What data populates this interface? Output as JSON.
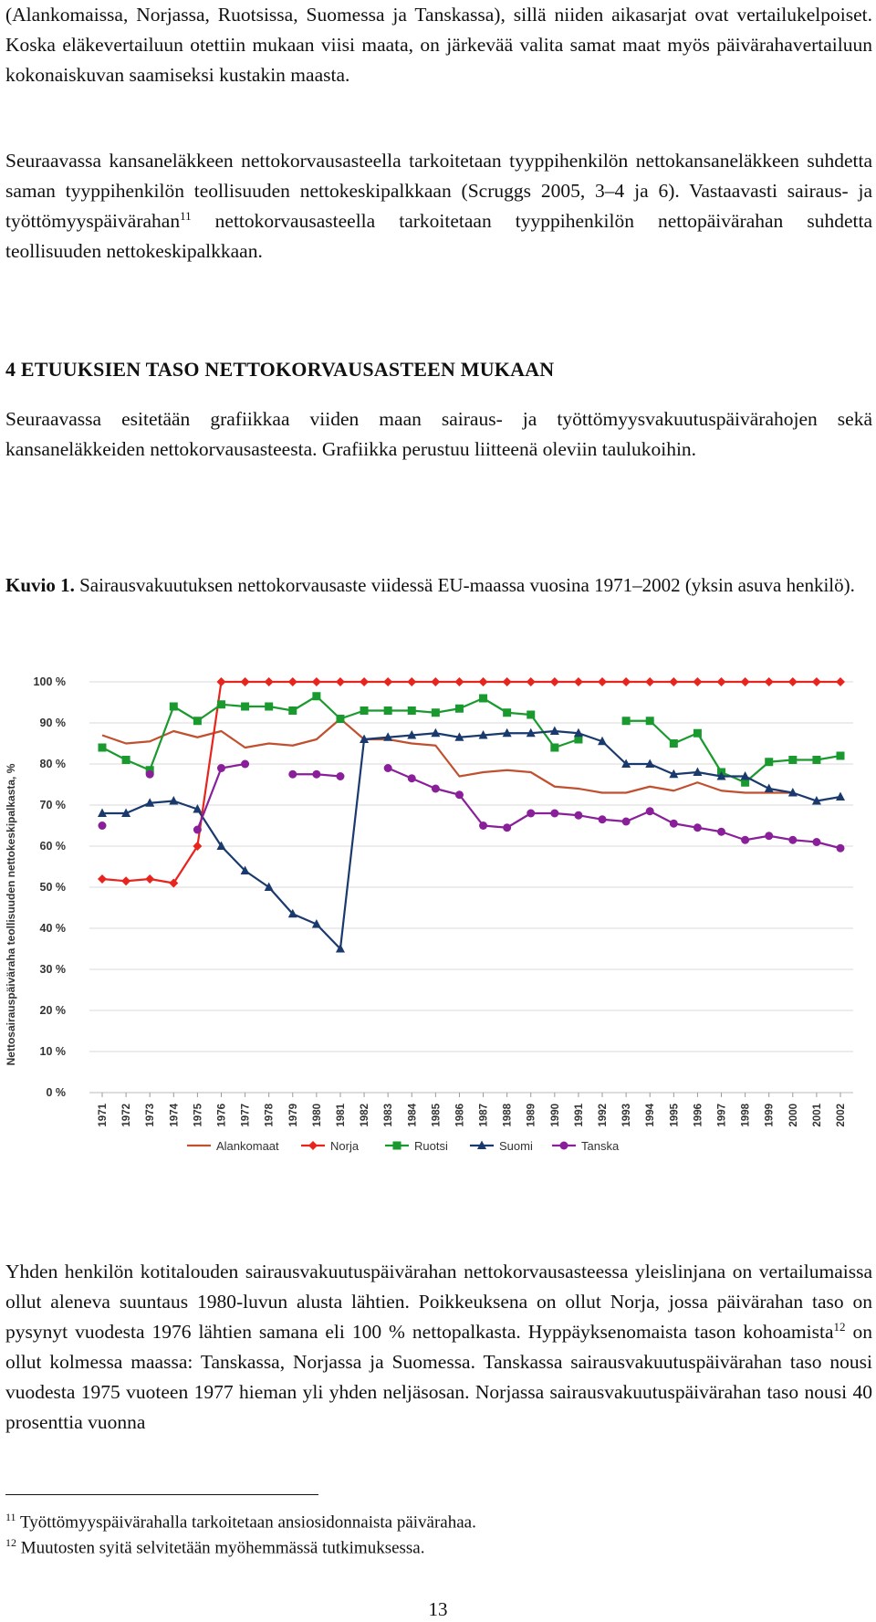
{
  "paragraphs": {
    "p1": "(Alankomaissa, Norjassa, Ruotsissa, Suomessa ja Tanskassa), sillä niiden aikasarjat ovat vertailukelpoiset. Koska eläkevertailuun otettiin mukaan viisi maata, on järkevää valita samat maat myös päivärahavertailuun kokonaiskuvan saamiseksi kustakin maasta.",
    "p2a": "Seuraavassa kansaneläkkeen nettokorvausasteella tarkoitetaan tyyppihenkilön nettokansaneläkkeen suhdetta saman tyyppihenkilön teollisuuden nettokeskipalkkaan (Scruggs 2005, 3–4 ja 6). Vastaavasti sairaus- ja työttömyyspäivärahan",
    "p2_sup": "11",
    "p2b": " nettokorvausasteella tarkoitetaan tyyppihenkilön nettopäivärahan suhdetta teollisuuden nettokeskipalkkaan.",
    "p3": "Seuraavassa esitetään grafiikkaa viiden maan sairaus- ja työttömyysvakuutuspäivärahojen sekä kansaneläkkeiden nettokorvausasteesta. Grafiikka perustuu liitteenä oleviin taulukoihin.",
    "p4a": "Yhden henkilön kotitalouden sairausvakuutuspäivärahan nettokorvausasteessa yleislinjana on vertailumaissa ollut aleneva suuntaus 1980-luvun alusta lähtien. Poikkeuksena on ollut Norja, jossa päivärahan taso on pysynyt vuodesta 1976 lähtien samana eli 100 % nettopalkasta. Hyppäyksenomaista tason kohoamista",
    "p4_sup": "12",
    "p4b": " on ollut kolmessa maassa: Tanskassa, Norjassa ja Suomessa. Tanskassa sairausvakuutuspäivärahan taso nousi vuodesta 1975 vuoteen 1977 hieman yli yhden neljäsosan. Norjassa sairausvakuutuspäivärahan taso nousi 40 prosenttia vuonna"
  },
  "heading": "4 ETUUKSIEN TASO NETTOKORVAUSASTEEN MUKAAN",
  "caption": {
    "label": "Kuvio 1.",
    "text": " Sairausvakuutuksen nettokorvausaste viidessä EU-maassa vuosina 1971–2002 (yksin asuva henkilö)."
  },
  "chart_data": {
    "type": "line",
    "ylabel": "Nettosairauspäiväraha teollisuuden nettokeskipalkasta, %",
    "ylim": [
      0,
      100
    ],
    "yticks": [
      "0 %",
      "10 %",
      "20 %",
      "30 %",
      "40 %",
      "50 %",
      "60 %",
      "70 %",
      "80 %",
      "90 %",
      "100 %"
    ],
    "x": [
      "1971",
      "1972",
      "1973",
      "1974",
      "1975",
      "1976",
      "1977",
      "1978",
      "1979",
      "1980",
      "1981",
      "1982",
      "1983",
      "1984",
      "1985",
      "1986",
      "1987",
      "1988",
      "1989",
      "1990",
      "1991",
      "1992",
      "1993",
      "1994",
      "1995",
      "1996",
      "1997",
      "1998",
      "1999",
      "2000",
      "2001",
      "2002"
    ],
    "legend_position": "bottom",
    "series": [
      {
        "name": "Alankomaat",
        "color": "#c0502f",
        "marker": "none",
        "values": [
          87,
          85,
          85.5,
          88,
          86.5,
          88,
          84,
          85,
          84.5,
          86,
          91,
          86,
          86,
          85,
          84.5,
          77,
          78,
          78.5,
          78,
          74.5,
          74,
          73,
          73,
          74.5,
          73.5,
          75.5,
          73.5,
          73,
          73,
          73,
          null,
          null
        ]
      },
      {
        "name": "Norja",
        "color": "#e8241e",
        "marker": "diamond",
        "values": [
          52,
          51.5,
          52,
          51,
          60,
          100,
          100,
          100,
          100,
          100,
          100,
          100,
          100,
          100,
          100,
          100,
          100,
          100,
          100,
          100,
          100,
          100,
          100,
          100,
          100,
          100,
          100,
          100,
          100,
          100,
          100,
          100
        ]
      },
      {
        "name": "Ruotsi",
        "color": "#1a9a2e",
        "marker": "square",
        "values": [
          84,
          81,
          78.5,
          94,
          90.5,
          94.5,
          94,
          94,
          93,
          96.5,
          91,
          93,
          93,
          93,
          92.5,
          93.5,
          96,
          92.5,
          92,
          84,
          86,
          null,
          90.5,
          90.5,
          85,
          87.5,
          78,
          75.5,
          80.5,
          81,
          81,
          82
        ]
      },
      {
        "name": "Suomi",
        "color": "#1a3a6e",
        "marker": "triangle",
        "values": [
          68,
          68,
          70.5,
          71,
          69,
          60,
          54,
          50,
          43.5,
          41,
          35,
          86,
          86.5,
          87,
          87.5,
          86.5,
          87,
          87.5,
          87.5,
          88,
          87.5,
          85.5,
          80,
          80,
          77.5,
          78,
          77,
          77,
          74,
          73,
          71,
          72
        ]
      },
      {
        "name": "Tanska",
        "color": "#8a1f9a",
        "marker": "circle",
        "values": [
          65,
          null,
          77.5,
          null,
          64,
          79,
          80,
          null,
          77.5,
          77.5,
          77,
          null,
          79,
          76.5,
          74,
          72.5,
          65,
          64.5,
          68,
          68,
          67.5,
          66.5,
          66,
          68.5,
          65.5,
          64.5,
          63.5,
          61.5,
          62.5,
          61.5,
          61,
          59.5
        ]
      }
    ]
  },
  "footnotes": [
    {
      "num": "11",
      "text": " Työttömyyspäivärahalla tarkoitetaan ansiosidonnaista päivärahaa."
    },
    {
      "num": "12",
      "text": " Muutosten syitä selvitetään myöhemmässä tutkimuksessa."
    }
  ],
  "page_number": "13"
}
